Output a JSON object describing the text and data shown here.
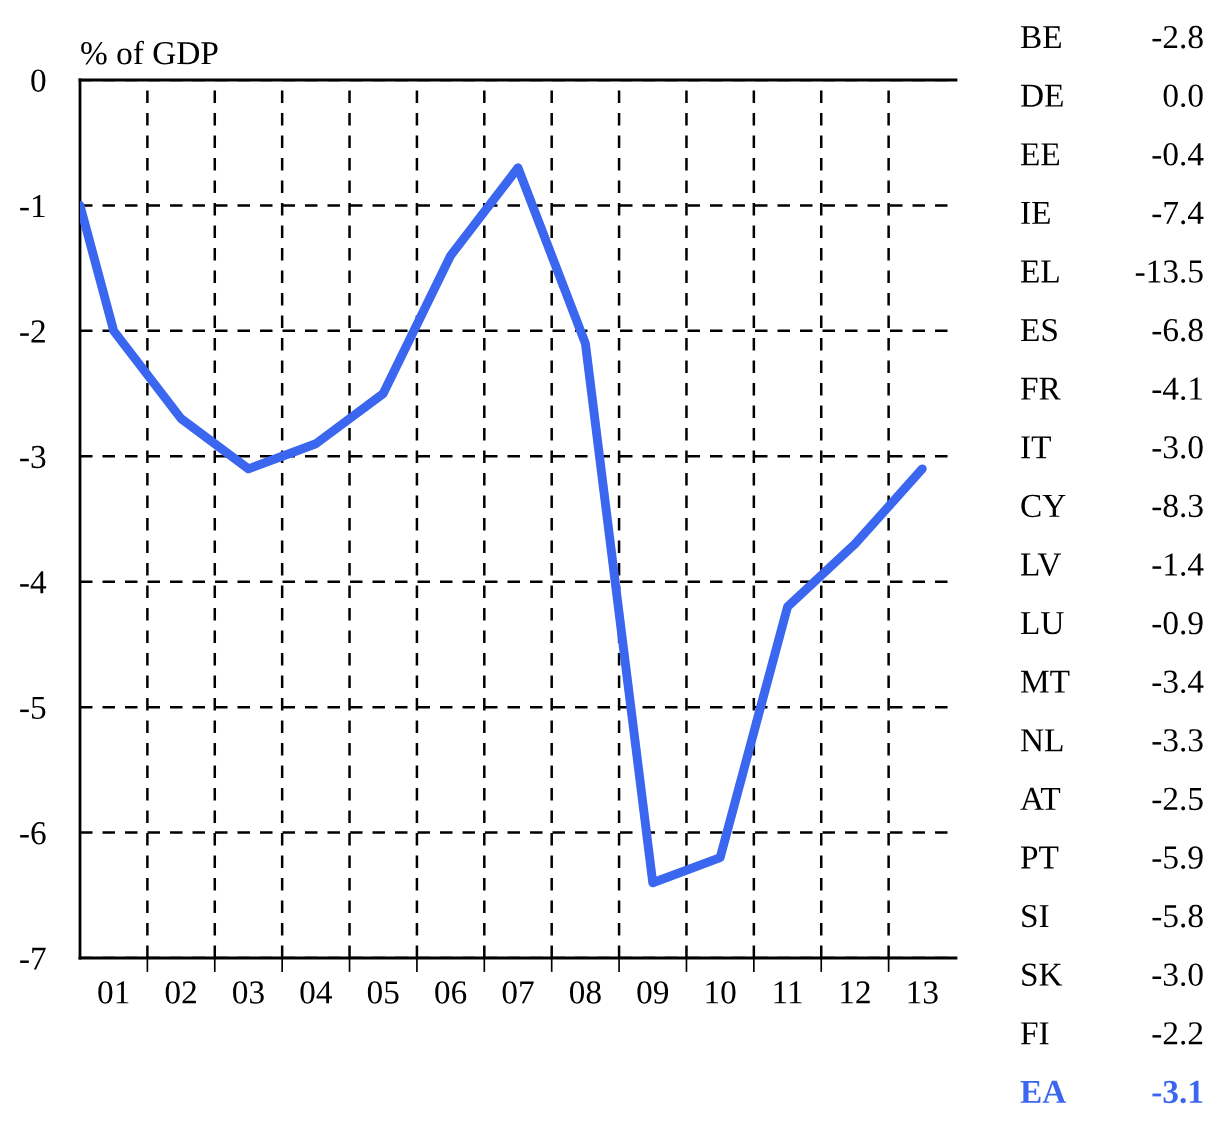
{
  "chart_data": {
    "type": "line",
    "ylabel": "% of GDP",
    "x": [
      2000.5,
      2001,
      2002,
      2003,
      2004,
      2005,
      2006,
      2007,
      2008,
      2009,
      2010,
      2011,
      2012,
      2013
    ],
    "series": [
      {
        "color": "#3a66f0",
        "values": [
          -1.0,
          -2.0,
          -2.7,
          -3.1,
          -2.9,
          -2.5,
          -1.4,
          -0.7,
          -2.1,
          -6.4,
          -6.2,
          -4.2,
          -3.7,
          -3.1
        ]
      }
    ],
    "xlim": [
      2000.5,
      2013.5
    ],
    "xticks": [
      {
        "value": 2001,
        "label": "01"
      },
      {
        "value": 2002,
        "label": "02"
      },
      {
        "value": 2003,
        "label": "03"
      },
      {
        "value": 2004,
        "label": "04"
      },
      {
        "value": 2005,
        "label": "05"
      },
      {
        "value": 2006,
        "label": "06"
      },
      {
        "value": 2007,
        "label": "07"
      },
      {
        "value": 2008,
        "label": "08"
      },
      {
        "value": 2009,
        "label": "09"
      },
      {
        "value": 2010,
        "label": "10"
      },
      {
        "value": 2011,
        "label": "11"
      },
      {
        "value": 2012,
        "label": "12"
      },
      {
        "value": 2013,
        "label": "13"
      },
      {
        "value": 2001.5,
        "label": null
      },
      {
        "value": 2002.5,
        "label": null
      },
      {
        "value": 2003.5,
        "label": null
      },
      {
        "value": 2004.5,
        "label": null
      },
      {
        "value": 2005.5,
        "label": null
      },
      {
        "value": 2006.5,
        "label": null
      },
      {
        "value": 2007.5,
        "label": null
      },
      {
        "value": 2008.5,
        "label": null
      },
      {
        "value": 2009.5,
        "label": null
      },
      {
        "value": 2010.5,
        "label": null
      },
      {
        "value": 2011.5,
        "label": null
      },
      {
        "value": 2012.5,
        "label": null
      }
    ],
    "ylim": [
      -7,
      0
    ],
    "yticks": [
      0,
      -1,
      -2,
      -3,
      -4,
      -5,
      -6,
      -7
    ],
    "grid": true,
    "line_style": "solid",
    "marker": "none",
    "annotations": [
      "BE -2.8",
      "DE 0.0",
      "EE -0.4",
      "IE -7.4",
      "EL -13.5",
      "ES -6.8",
      "FR -4.1",
      "IT -3.0",
      "CY -8.3",
      "LV -1.4",
      "LU -0.9",
      "MT -3.4",
      "NL -3.3",
      "AT -2.5",
      "PT -5.9",
      "SI -5.8",
      "SK -3.0",
      "FI -2.2",
      "EA -3.1"
    ]
  }
}
